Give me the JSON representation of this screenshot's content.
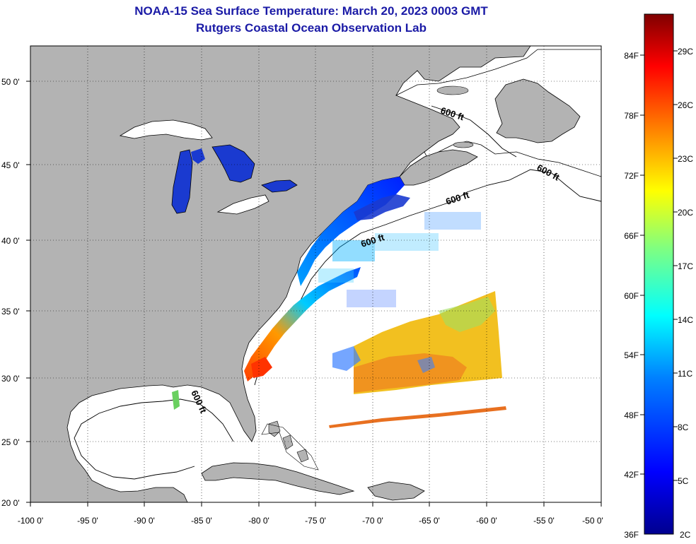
{
  "title": "NOAA-15 Sea Surface Temperature:  March 20, 2023 0003 GMT",
  "subtitle": "Rutgers Coastal Ocean Observation Lab",
  "map": {
    "lon_range": [
      -100,
      -50
    ],
    "lat_range": [
      20,
      52.5
    ],
    "x_ticks": [
      "-100 0'",
      "-95 0'",
      "-90 0'",
      "-85 0'",
      "-80 0'",
      "-75 0'",
      "-70 0'",
      "-65 0'",
      "-60 0'",
      "-55 0'",
      "-50 0'"
    ],
    "y_ticks": [
      "50 0'",
      "45 0'",
      "40 0'",
      "35 0'",
      "30 0'",
      "25 0'",
      "20 0'"
    ],
    "land_color": "#b3b3b3",
    "ocean_color": "#ffffff",
    "isobath_label": "600 ft",
    "isobath_labels": [
      "600 ft",
      "600 ft",
      "600 ft",
      "600 ft",
      "600 ft"
    ]
  },
  "colorbar": {
    "fahrenheit_labels": [
      "84F",
      "78F",
      "72F",
      "66F",
      "60F",
      "54F",
      "48F",
      "42F",
      "36F"
    ],
    "celsius_labels": [
      "29C",
      "26C",
      "23C",
      "20C",
      "17C",
      "14C",
      "11C",
      "8C",
      "5C",
      "2C"
    ],
    "colors": [
      "#7f0000",
      "#ff0000",
      "#ff8000",
      "#ffff00",
      "#80ff80",
      "#00ffff",
      "#0080ff",
      "#0000ff",
      "#00008f"
    ]
  }
}
